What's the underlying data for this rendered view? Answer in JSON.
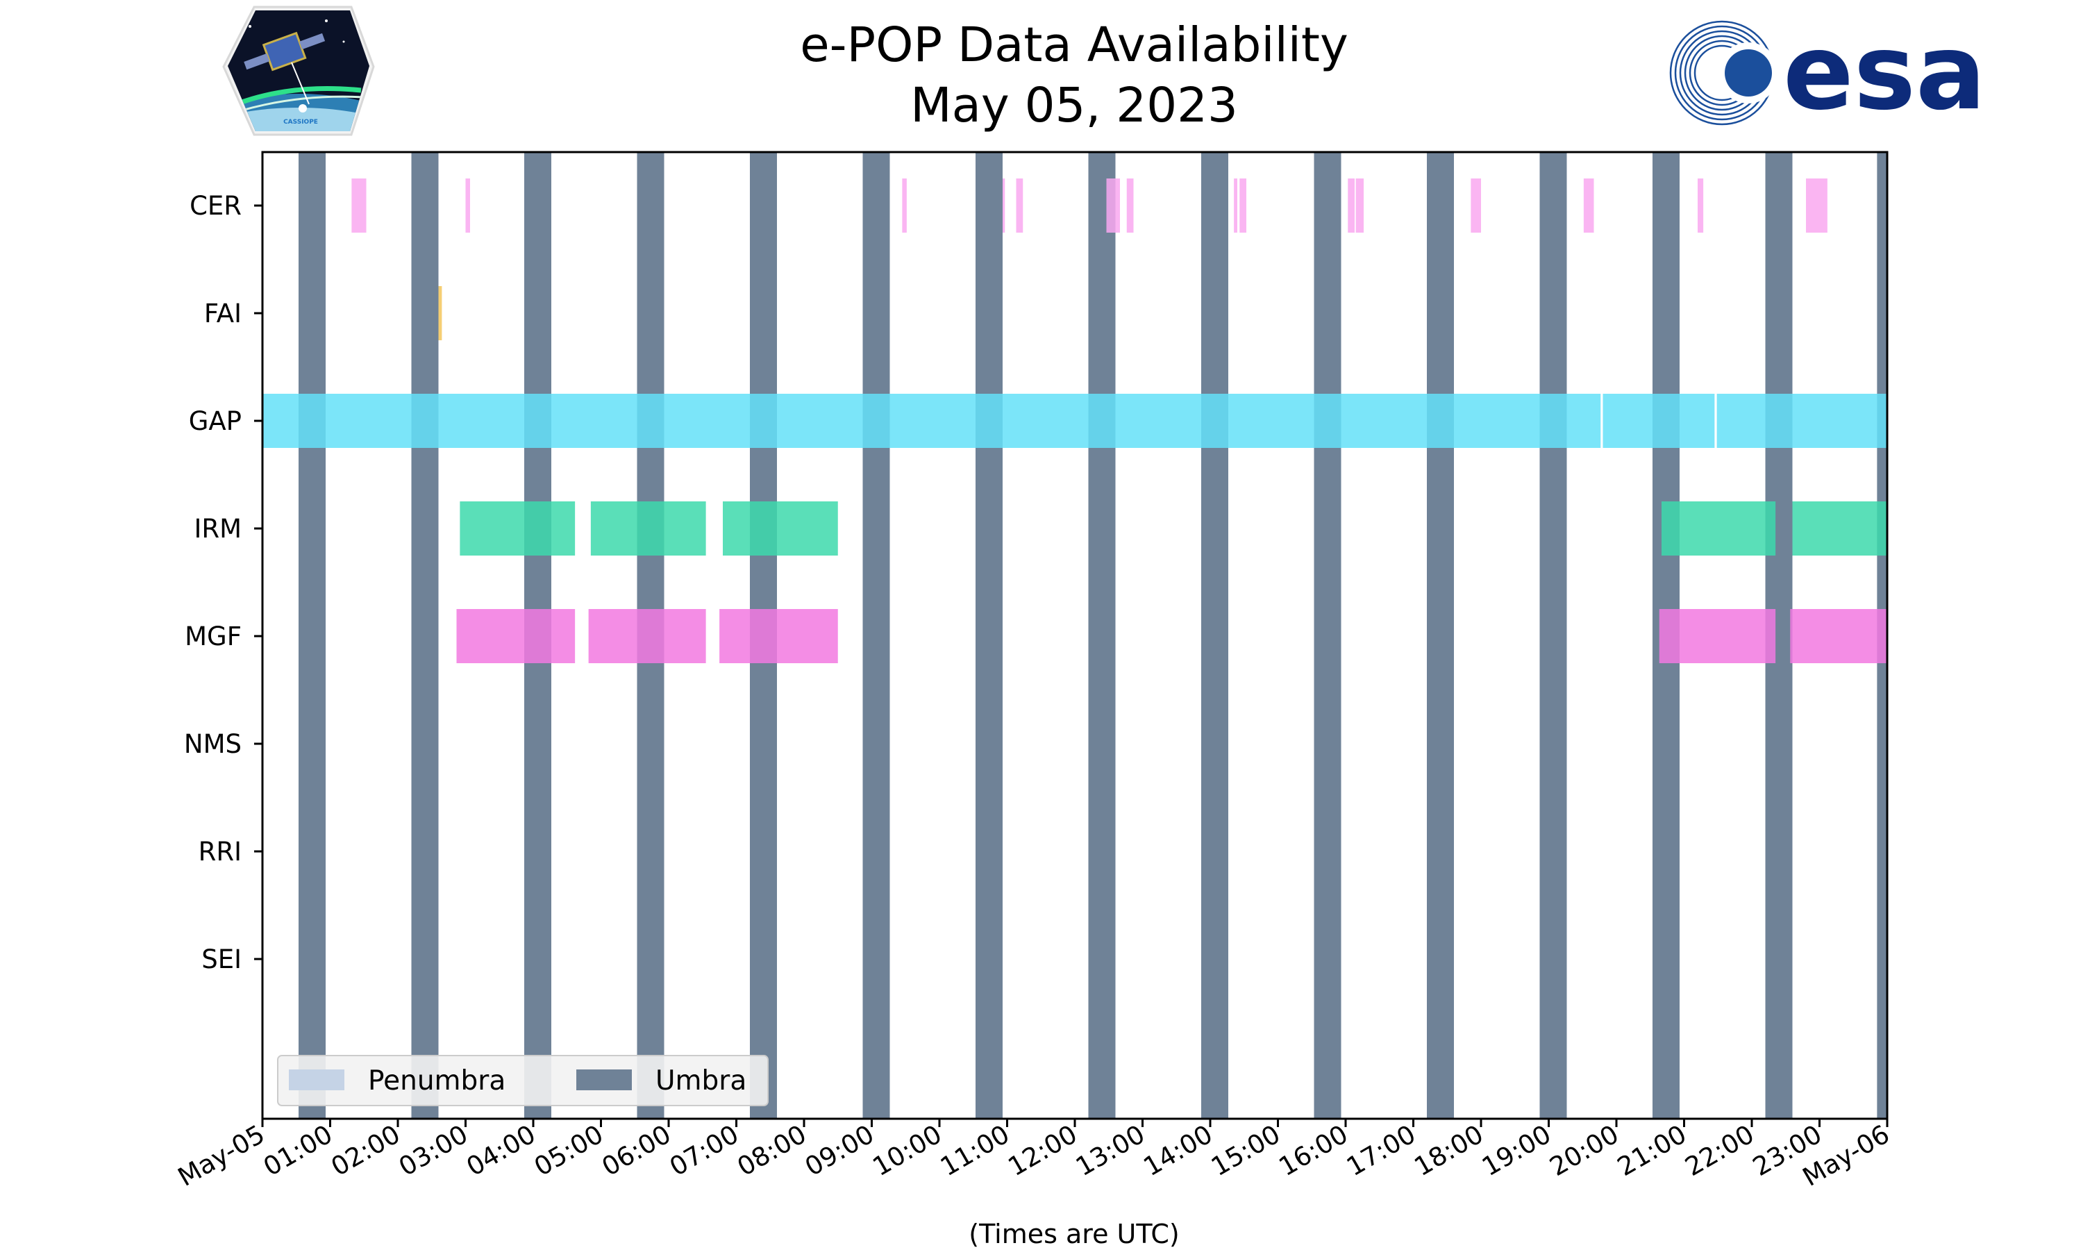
{
  "chart_data": {
    "type": "timeline",
    "title": "e-POP Data Availability",
    "subtitle": "May 05, 2023",
    "xlabel": "(Times are UTC)",
    "xlim": [
      "2023-05-05 00:00",
      "2023-05-06 00:00"
    ],
    "x_tick_labels": [
      "May-05",
      "01:00",
      "02:00",
      "03:00",
      "04:00",
      "05:00",
      "06:00",
      "07:00",
      "08:00",
      "09:00",
      "10:00",
      "11:00",
      "12:00",
      "13:00",
      "14:00",
      "15:00",
      "16:00",
      "17:00",
      "18:00",
      "19:00",
      "20:00",
      "21:00",
      "22:00",
      "23:00",
      "May-06"
    ],
    "instruments": [
      "CER",
      "FAI",
      "GAP",
      "IRM",
      "MGF",
      "NMS",
      "RRI",
      "SEI"
    ],
    "series": [
      {
        "instrument": "CER",
        "color": "#f9a8f0",
        "intervals": [
          [
            "01:19",
            "01:32"
          ],
          [
            "03:00",
            "03:04"
          ],
          [
            "09:27",
            "09:31"
          ],
          [
            "10:56",
            "10:58"
          ],
          [
            "11:08",
            "11:14"
          ],
          [
            "12:28",
            "12:40"
          ],
          [
            "12:46",
            "12:52"
          ],
          [
            "14:21",
            "14:24"
          ],
          [
            "14:26",
            "14:32"
          ],
          [
            "16:02",
            "16:08"
          ],
          [
            "16:09",
            "16:16"
          ],
          [
            "17:51",
            "18:00"
          ],
          [
            "19:31",
            "19:40"
          ],
          [
            "21:12",
            "21:17"
          ],
          [
            "22:48",
            "23:07"
          ]
        ]
      },
      {
        "instrument": "FAI",
        "color": "#f3c65a",
        "intervals": [
          [
            "02:36",
            "02:39"
          ]
        ]
      },
      {
        "instrument": "GAP",
        "color": "#64e0f8",
        "intervals": [
          [
            "00:00",
            "19:46"
          ],
          [
            "19:48",
            "21:27"
          ],
          [
            "21:29",
            "24:00"
          ]
        ]
      },
      {
        "instrument": "IRM",
        "color": "#3dd9ac",
        "intervals": [
          [
            "02:55",
            "04:37"
          ],
          [
            "04:51",
            "06:33"
          ],
          [
            "06:48",
            "08:30"
          ],
          [
            "20:40",
            "22:21"
          ],
          [
            "22:36",
            "24:00"
          ]
        ]
      },
      {
        "instrument": "MGF",
        "color": "#f279e0",
        "intervals": [
          [
            "02:52",
            "04:37"
          ],
          [
            "04:49",
            "06:33"
          ],
          [
            "06:45",
            "08:30"
          ],
          [
            "20:38",
            "22:21"
          ],
          [
            "22:34",
            "24:00"
          ]
        ]
      },
      {
        "instrument": "NMS",
        "color": "#cccccc",
        "intervals": []
      },
      {
        "instrument": "RRI",
        "color": "#cccccc",
        "intervals": []
      },
      {
        "instrument": "SEI",
        "color": "#cccccc",
        "intervals": []
      }
    ],
    "umbra": {
      "color": "#6f8297",
      "intervals": [
        [
          "00:32",
          "00:56"
        ],
        [
          "02:12",
          "02:36"
        ],
        [
          "03:52",
          "04:16"
        ],
        [
          "05:32",
          "05:56"
        ],
        [
          "07:12",
          "07:36"
        ],
        [
          "08:52",
          "09:16"
        ],
        [
          "10:32",
          "10:56"
        ],
        [
          "12:12",
          "12:36"
        ],
        [
          "13:52",
          "14:16"
        ],
        [
          "15:32",
          "15:56"
        ],
        [
          "17:12",
          "17:36"
        ],
        [
          "18:52",
          "19:16"
        ],
        [
          "20:32",
          "20:56"
        ],
        [
          "22:12",
          "22:36"
        ],
        [
          "23:51",
          "24:00"
        ]
      ]
    },
    "penumbra": {
      "color": "#c5d3e6",
      "intervals": []
    },
    "legend": {
      "position": "lower-left",
      "entries": [
        {
          "label": "Penumbra",
          "color": "#c5d3e6"
        },
        {
          "label": "Umbra",
          "color": "#6f8297"
        }
      ]
    }
  },
  "logos": {
    "left": "cassiope-logo",
    "left_text": "CASSIOPE",
    "right": "esa-logo",
    "right_text": "esa"
  }
}
